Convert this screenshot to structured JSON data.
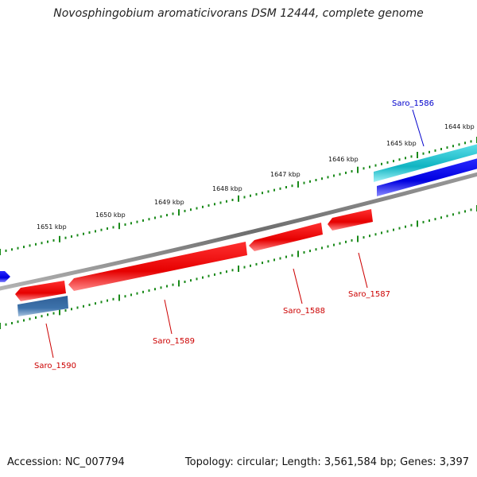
{
  "title": "Novosphingobium aromaticivorans DSM 12444, complete genome",
  "footer": {
    "accession": "Accession: NC_007794",
    "stats": "Topology: circular; Length: 3,561,584 bp; Genes: 3,397"
  },
  "colors": {
    "backbone": "#7f7f7f",
    "tick": "#1a8a1a",
    "forward_cds": "#0000ee",
    "forward_cds_alt": "#11b5c2",
    "reverse_cds": "#ee0000",
    "reverse_cds_alt": "#3a6ea5"
  },
  "ticks": [
    {
      "label": "1644 kbp"
    },
    {
      "label": "1645 kbp"
    },
    {
      "label": "1646 kbp"
    },
    {
      "label": "1647 kbp"
    },
    {
      "label": "1648 kbp"
    },
    {
      "label": "1649 kbp"
    },
    {
      "label": "1650 kbp"
    },
    {
      "label": "1651 kbp"
    }
  ],
  "genes": [
    {
      "label": "Saro_1586",
      "strand": "+",
      "color": "#0000ee"
    },
    {
      "label": "Saro_1587",
      "strand": "-",
      "color": "#ee0000"
    },
    {
      "label": "Saro_1588",
      "strand": "-",
      "color": "#ee0000"
    },
    {
      "label": "Saro_1589",
      "strand": "-",
      "color": "#ee0000"
    },
    {
      "label": "Saro_1590",
      "strand": "-",
      "color": "#ee0000"
    }
  ]
}
